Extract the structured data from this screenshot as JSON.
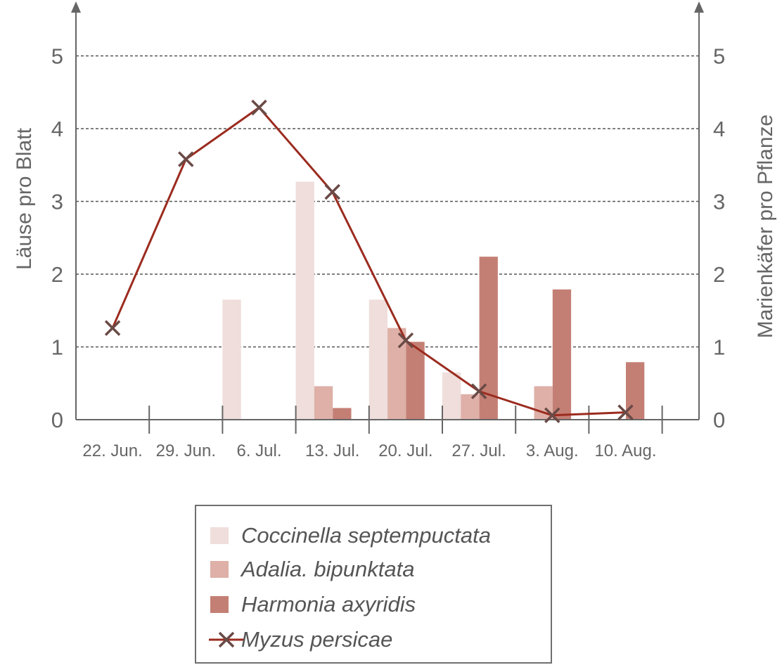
{
  "chart_data": {
    "type": "bar",
    "categories": [
      "22. Jun.",
      "29. Jun.",
      "6. Jul.",
      "13. Jul.",
      "20. Jul.",
      "27. Jul.",
      "3. Aug.",
      "10. Aug."
    ],
    "ylabel_left": "Läuse pro Blatt",
    "ylabel_right": "Marienkäfer pro Pflanze",
    "ylim_left": [
      0,
      5
    ],
    "ylim_right": [
      0,
      5
    ],
    "yticks_left": [
      "0",
      "1",
      "2",
      "3",
      "4",
      "5"
    ],
    "yticks_right": [
      "0",
      "1",
      "2",
      "3",
      "4",
      "5"
    ],
    "grid": "horizontal dashed",
    "legend_position": "bottom",
    "series": [
      {
        "name": "Coccinella septempuctata",
        "kind": "bar",
        "axis": "right",
        "color": "#efdedb",
        "values": [
          0,
          0,
          1.65,
          3.27,
          1.65,
          0.65,
          0,
          0
        ]
      },
      {
        "name": "Adalia. bipunktata",
        "kind": "bar",
        "axis": "right",
        "color": "#deb0a7",
        "values": [
          0,
          0,
          0,
          0.46,
          1.26,
          0.35,
          0.46,
          0
        ]
      },
      {
        "name": "Harmonia axyridis",
        "kind": "bar",
        "axis": "right",
        "color": "#c47f74",
        "values": [
          0,
          0,
          0,
          0.16,
          1.07,
          2.24,
          1.79,
          0.79
        ]
      },
      {
        "name": "Myzus persicae",
        "kind": "line",
        "axis": "left",
        "color": "#9b2b1f",
        "marker": "x",
        "marker_color": "#6a4a46",
        "x": [
          0.5,
          1.5,
          2.5,
          3.5,
          4.5,
          5.5,
          6.5,
          7.5
        ],
        "values": [
          1.26,
          3.58,
          4.29,
          3.13,
          1.09,
          0.39,
          0.06,
          0.1
        ]
      }
    ]
  }
}
